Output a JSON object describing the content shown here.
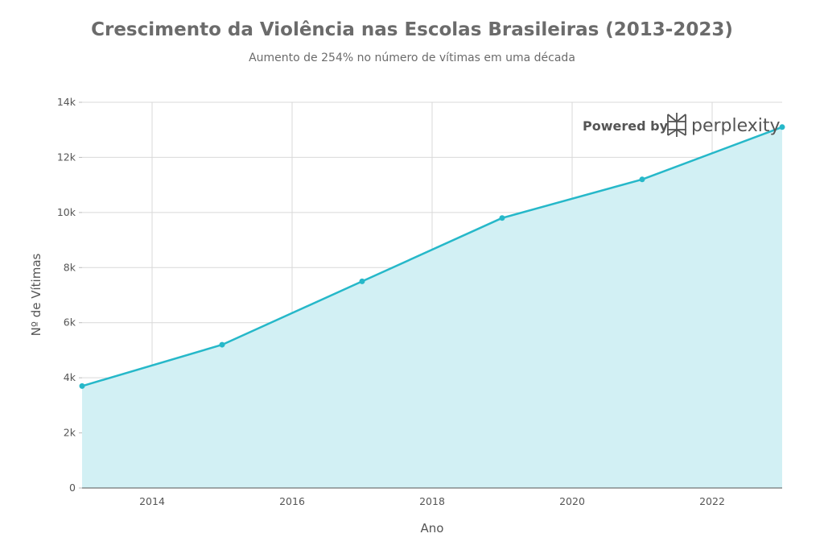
{
  "chart_data": {
    "type": "area",
    "title": "Crescimento da Violência nas Escolas Brasileiras (2013-2023)",
    "subtitle": "Aumento de 254% no número de vítimas em uma década",
    "xlabel": "Ano",
    "ylabel": "Nº de Vítimas",
    "x": [
      2013,
      2015,
      2017,
      2019,
      2021,
      2023
    ],
    "values": [
      3700,
      5200,
      7500,
      9800,
      11200,
      13100
    ],
    "xlim": [
      2013,
      2023
    ],
    "ylim": [
      0,
      14000
    ],
    "x_ticks": [
      {
        "value": 2014,
        "label": "2014"
      },
      {
        "value": 2016,
        "label": "2016"
      },
      {
        "value": 2018,
        "label": "2018"
      },
      {
        "value": 2020,
        "label": "2020"
      },
      {
        "value": 2022,
        "label": "2022"
      }
    ],
    "y_ticks": [
      {
        "value": 0,
        "label": "0"
      },
      {
        "value": 2000,
        "label": "2k"
      },
      {
        "value": 4000,
        "label": "4k"
      },
      {
        "value": 6000,
        "label": "6k"
      },
      {
        "value": 8000,
        "label": "8k"
      },
      {
        "value": 10000,
        "label": "10k"
      },
      {
        "value": 12000,
        "label": "12k"
      },
      {
        "value": 14000,
        "label": "14k"
      }
    ],
    "grid": true,
    "colors": {
      "line": "#26b8c9",
      "fill": "#d2f0f4",
      "marker": "#26b8c9"
    }
  },
  "watermark": {
    "prefix": "Powered by",
    "brand": "perplexity",
    "icon": "perplexity-logo-icon"
  }
}
